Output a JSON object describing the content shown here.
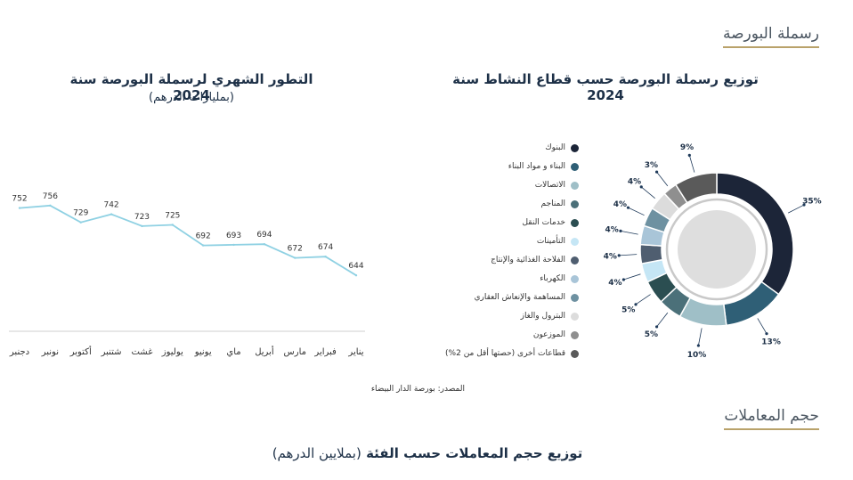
{
  "sections": {
    "market_cap": "رسملة البورصة",
    "transactions": "حجم المعاملات"
  },
  "line_chart": {
    "title": "التطور الشهري لرسملة البورصة سنة 2024",
    "subtitle": "(بمليارات الدرهم)"
  },
  "donut_chart": {
    "title": "توزيع رسملة البورصة حسب قطاع النشاط سنة 2024"
  },
  "source": "المصدر: بورصة الدار البيضاء",
  "bottom_chart": {
    "title_bold": "توزيع حجم  المعاملات حسب الفئة",
    "title_light": "(بملايين الدرهم)"
  },
  "chart_data": [
    {
      "type": "line",
      "title": "التطور الشهري لرسملة البورصة سنة 2024",
      "subtitle": "(بمليارات الدرهم)",
      "x": [
        "يناير",
        "فبراير",
        "مارس",
        "أبريل",
        "ماي",
        "يونيو",
        "يوليوز",
        "غشت",
        "شتنبر",
        "أكتوبر",
        "نونبر",
        "دجنبر"
      ],
      "values": [
        644,
        674,
        672,
        694,
        693,
        692,
        725,
        723,
        742,
        729,
        756,
        752
      ],
      "color": "#8fd1e3",
      "ylim": [
        600,
        800
      ],
      "grid": false
    },
    {
      "type": "pie",
      "title": "توزيع رسملة البورصة حسب قطاع النشاط سنة 2024",
      "slices": [
        {
          "label": "البنوك",
          "value": 35,
          "color": "#1c2538"
        },
        {
          "label": "البناء و مواد البناء",
          "value": 13,
          "color": "#2f5f76"
        },
        {
          "label": "الاتصالات",
          "value": 10,
          "color": "#9fbfc7"
        },
        {
          "label": "المناجم",
          "value": 5,
          "color": "#4b7079"
        },
        {
          "label": "خدمات النقل",
          "value": 5,
          "color": "#2b4e51"
        },
        {
          "label": "التأمينات",
          "value": 4,
          "color": "#c5e6f5"
        },
        {
          "label": "الفلاحة الغذائية والإنتاج",
          "value": 4,
          "color": "#4f5e70"
        },
        {
          "label": "الكهرباء",
          "value": 4,
          "color": "#a9c5d8"
        },
        {
          "label": "المساهمة والإنعاش العقاري",
          "value": 4,
          "color": "#6e91a1"
        },
        {
          "label": "البترول والغاز",
          "value": 4,
          "color": "#dcdcdc"
        },
        {
          "label": "الموزعون",
          "value": 3,
          "color": "#8f8f8f"
        },
        {
          "label": "قطاعات أخرى (حصتها أقل من 2%)",
          "value": 9,
          "color": "#5a5a5a"
        }
      ],
      "value_labels": [
        "35%",
        "13%",
        "10%",
        "5%",
        "5%",
        "4%",
        "4%",
        "4%",
        "4%",
        "4%",
        "3%",
        "9%"
      ]
    }
  ]
}
